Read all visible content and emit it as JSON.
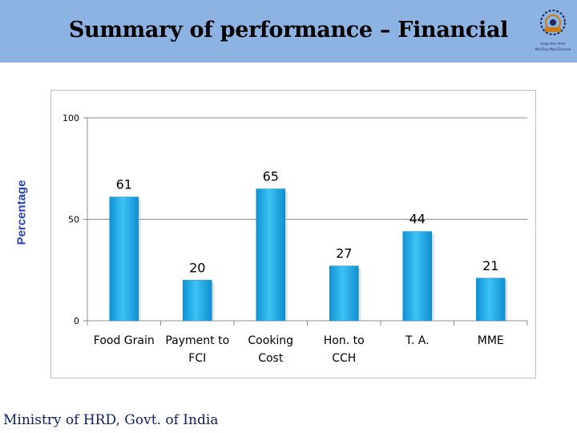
{
  "slide": {
    "title": "Summary of performance – Financial",
    "footer": "Ministry of HRD, Govt. of India"
  },
  "logo": {
    "icon": "emblem-logo-icon",
    "caption_lines": [
      "मध्याह्न भोजन योजना",
      "Mid Day Meal Scheme"
    ]
  },
  "colors": {
    "header_bg": "#8db3e2",
    "bar": "#1aabe8",
    "ylabel": "#2a45b8",
    "footer": "#0b1f63"
  },
  "chart_data": {
    "type": "bar",
    "title": "",
    "xlabel": "",
    "ylabel": "Percentage",
    "categories": [
      "Food Grain",
      "Payment to FCI",
      "Cooking Cost",
      "Hon. to CCH",
      "T. A.",
      "MME"
    ],
    "values": [
      61,
      20,
      65,
      27,
      44,
      21
    ],
    "ylim": [
      0,
      100
    ],
    "yticks": [
      0,
      50,
      100
    ],
    "grid": true,
    "legend": "none"
  }
}
